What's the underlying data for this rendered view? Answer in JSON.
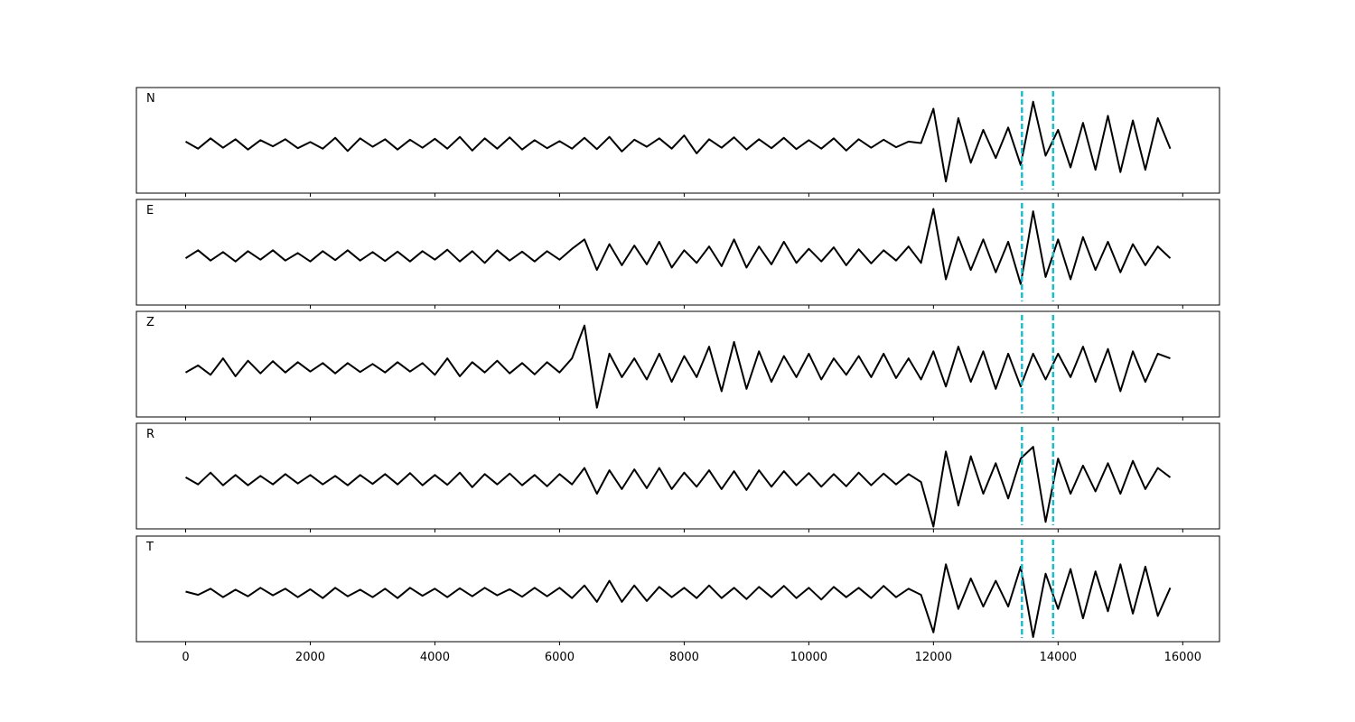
{
  "chart_data": {
    "type": "line",
    "x": [
      0,
      200,
      400,
      600,
      800,
      1000,
      1200,
      1400,
      1600,
      1800,
      2000,
      2200,
      2400,
      2600,
      2800,
      3000,
      3200,
      3400,
      3600,
      3800,
      4000,
      4200,
      4400,
      4600,
      4800,
      5000,
      5200,
      5400,
      5600,
      5800,
      6000,
      6200,
      6400,
      6600,
      6800,
      7000,
      7200,
      7400,
      7600,
      7800,
      8000,
      8200,
      8400,
      8600,
      8800,
      9000,
      9200,
      9400,
      9600,
      9800,
      10000,
      10200,
      10400,
      10600,
      10800,
      11000,
      11200,
      11400,
      11600,
      11800,
      12000,
      12200,
      12400,
      12600,
      12800,
      13000,
      13200,
      13400,
      13600,
      13800,
      14000,
      14200,
      14400,
      14600,
      14800,
      15000,
      15200,
      15400,
      15600,
      15800
    ],
    "xlim": [
      -790,
      16590
    ],
    "xticks": [
      0,
      2000,
      4000,
      6000,
      8000,
      10000,
      12000,
      14000,
      16000
    ],
    "ylim": [
      -1,
      1
    ],
    "vlines": [
      {
        "value": 13420,
        "color": "#17becf"
      },
      {
        "value": 13920,
        "color": "#17becf"
      }
    ],
    "series": [
      {
        "name": "N",
        "color": "#000000",
        "values": [
          0.05,
          -0.1,
          0.12,
          -0.08,
          0.1,
          -0.12,
          0.08,
          -0.05,
          0.1,
          -0.09,
          0.04,
          -0.1,
          0.13,
          -0.15,
          0.12,
          -0.06,
          0.1,
          -0.12,
          0.09,
          -0.08,
          0.11,
          -0.1,
          0.15,
          -0.14,
          0.12,
          -0.1,
          0.14,
          -0.12,
          0.08,
          -0.09,
          0.06,
          -0.1,
          0.13,
          -0.11,
          0.15,
          -0.16,
          0.09,
          -0.06,
          0.12,
          -0.1,
          0.18,
          -0.2,
          0.1,
          -0.08,
          0.14,
          -0.12,
          0.1,
          -0.09,
          0.13,
          -0.11,
          0.08,
          -0.1,
          0.12,
          -0.14,
          0.1,
          -0.08,
          0.09,
          -0.07,
          0.05,
          0.02,
          0.75,
          -0.8,
          0.55,
          -0.4,
          0.3,
          -0.3,
          0.35,
          -0.45,
          0.9,
          -0.25,
          0.3,
          -0.5,
          0.45,
          -0.55,
          0.6,
          -0.6,
          0.5,
          -0.55,
          0.55,
          -0.1
        ]
      },
      {
        "name": "E",
        "color": "#000000",
        "values": [
          -0.05,
          0.12,
          -0.1,
          0.08,
          -0.12,
          0.1,
          -0.08,
          0.12,
          -0.1,
          0.06,
          -0.12,
          0.1,
          -0.09,
          0.12,
          -0.1,
          0.08,
          -0.11,
          0.09,
          -0.12,
          0.1,
          -0.08,
          0.13,
          -0.12,
          0.1,
          -0.15,
          0.12,
          -0.1,
          0.09,
          -0.12,
          0.1,
          -0.08,
          0.15,
          0.35,
          -0.3,
          0.25,
          -0.2,
          0.22,
          -0.18,
          0.3,
          -0.25,
          0.12,
          -0.15,
          0.2,
          -0.22,
          0.35,
          -0.25,
          0.2,
          -0.18,
          0.3,
          -0.15,
          0.15,
          -0.12,
          0.18,
          -0.2,
          0.14,
          -0.16,
          0.12,
          -0.1,
          0.2,
          -0.15,
          1.0,
          -0.5,
          0.4,
          -0.3,
          0.35,
          -0.35,
          0.3,
          -0.6,
          0.95,
          -0.45,
          0.35,
          -0.5,
          0.4,
          -0.3,
          0.3,
          -0.35,
          0.25,
          -0.2,
          0.2,
          -0.05
        ]
      },
      {
        "name": "Z",
        "color": "#000000",
        "values": [
          -0.1,
          0.05,
          -0.15,
          0.2,
          -0.18,
          0.15,
          -0.12,
          0.14,
          -0.1,
          0.12,
          -0.08,
          0.1,
          -0.12,
          0.1,
          -0.09,
          0.08,
          -0.1,
          0.12,
          -0.08,
          0.1,
          -0.15,
          0.2,
          -0.18,
          0.12,
          -0.1,
          0.15,
          -0.12,
          0.1,
          -0.14,
          0.12,
          -0.1,
          0.2,
          0.9,
          -0.85,
          0.3,
          -0.2,
          0.2,
          -0.25,
          0.3,
          -0.3,
          0.25,
          -0.2,
          0.45,
          -0.5,
          0.55,
          -0.45,
          0.35,
          -0.3,
          0.25,
          -0.2,
          0.3,
          -0.25,
          0.2,
          -0.15,
          0.25,
          -0.2,
          0.3,
          -0.22,
          0.2,
          -0.25,
          0.35,
          -0.4,
          0.45,
          -0.3,
          0.35,
          -0.45,
          0.3,
          -0.4,
          0.3,
          -0.25,
          0.3,
          -0.2,
          0.45,
          -0.3,
          0.4,
          -0.5,
          0.35,
          -0.3,
          0.3,
          0.2
        ]
      },
      {
        "name": "R",
        "color": "#000000",
        "values": [
          0.05,
          -0.1,
          0.15,
          -0.12,
          0.1,
          -0.12,
          0.08,
          -0.1,
          0.12,
          -0.08,
          0.1,
          -0.1,
          0.08,
          -0.12,
          0.1,
          -0.09,
          0.12,
          -0.1,
          0.14,
          -0.12,
          0.1,
          -0.11,
          0.15,
          -0.16,
          0.12,
          -0.1,
          0.13,
          -0.12,
          0.1,
          -0.14,
          0.12,
          -0.1,
          0.25,
          -0.3,
          0.2,
          -0.2,
          0.22,
          -0.18,
          0.25,
          -0.2,
          0.15,
          -0.15,
          0.2,
          -0.2,
          0.18,
          -0.22,
          0.2,
          -0.15,
          0.18,
          -0.12,
          0.14,
          -0.15,
          0.12,
          -0.14,
          0.15,
          -0.12,
          0.13,
          -0.1,
          0.12,
          -0.05,
          -1.0,
          0.6,
          -0.55,
          0.5,
          -0.3,
          0.35,
          -0.4,
          0.45,
          0.7,
          -0.9,
          0.45,
          -0.3,
          0.3,
          -0.25,
          0.35,
          -0.3,
          0.4,
          -0.2,
          0.25,
          0.05
        ]
      },
      {
        "name": "T",
        "color": "#000000",
        "values": [
          0.02,
          -0.05,
          0.08,
          -0.1,
          0.06,
          -0.08,
          0.1,
          -0.06,
          0.08,
          -0.1,
          0.07,
          -0.12,
          0.1,
          -0.08,
          0.06,
          -0.1,
          0.08,
          -0.12,
          0.1,
          -0.07,
          0.08,
          -0.1,
          0.09,
          -0.08,
          0.1,
          -0.06,
          0.07,
          -0.09,
          0.1,
          -0.08,
          0.1,
          -0.12,
          0.15,
          -0.2,
          0.25,
          -0.2,
          0.15,
          -0.18,
          0.12,
          -0.1,
          0.1,
          -0.12,
          0.15,
          -0.12,
          0.1,
          -0.14,
          0.12,
          -0.1,
          0.14,
          -0.12,
          0.1,
          -0.15,
          0.12,
          -0.1,
          0.1,
          -0.12,
          0.14,
          -0.1,
          0.08,
          -0.05,
          -0.85,
          0.6,
          -0.35,
          0.3,
          -0.3,
          0.25,
          -0.3,
          0.55,
          -0.95,
          0.4,
          -0.35,
          0.5,
          -0.55,
          0.45,
          -0.4,
          0.6,
          -0.45,
          0.55,
          -0.5,
          0.1
        ]
      }
    ]
  }
}
